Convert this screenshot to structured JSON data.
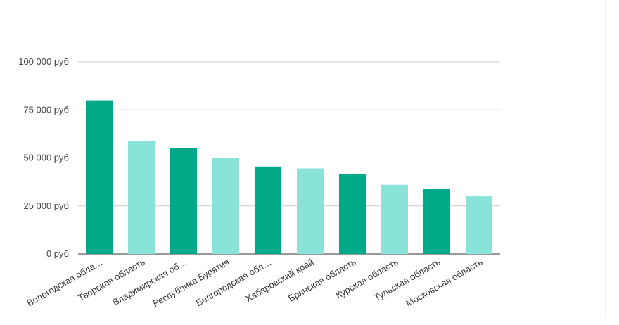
{
  "colors": {
    "dark": "#00a988",
    "light": "#8ae3d9",
    "grid": "#cccccc",
    "baseline": "#333333"
  },
  "chart_data": {
    "type": "bar",
    "title": "",
    "xlabel": "",
    "ylabel": "",
    "ylim": [
      0,
      100000
    ],
    "y_ticks": [
      {
        "value": 0,
        "label": "0 руб"
      },
      {
        "value": 25000,
        "label": "25 000 руб"
      },
      {
        "value": 50000,
        "label": "50 000 руб"
      },
      {
        "value": 75000,
        "label": "75 000 руб"
      },
      {
        "value": 100000,
        "label": "100 000 руб"
      }
    ],
    "categories": [
      "Вологодская обла…",
      "Тверская область",
      "Владимирская об…",
      "Республика Бурятия",
      "Белгородская обл…",
      "Хабаровский край",
      "Брянская область",
      "Курская область",
      "Тульская область",
      "Московская область"
    ],
    "values": [
      80000,
      59000,
      55000,
      50000,
      45500,
      44500,
      41500,
      36000,
      34000,
      30000
    ],
    "bar_colors": [
      "dark",
      "light",
      "dark",
      "light",
      "dark",
      "light",
      "dark",
      "light",
      "dark",
      "light"
    ],
    "grid": true,
    "legend": "none"
  }
}
